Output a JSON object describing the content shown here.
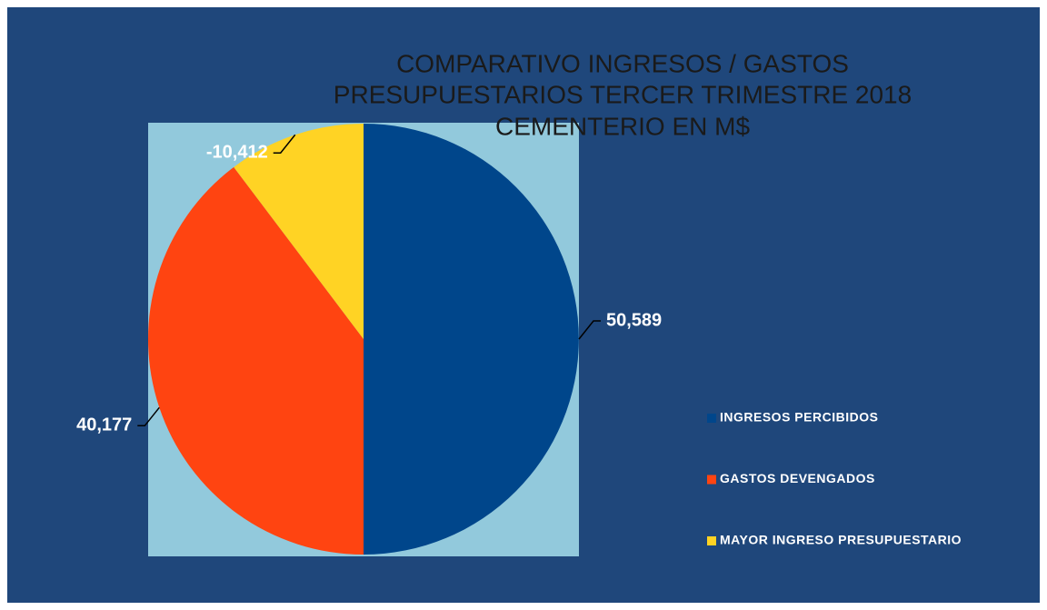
{
  "chart_data": {
    "type": "pie",
    "title": [
      "COMPARATIVO INGRESOS / GASTOS",
      "PRESUPUESTARIOS TERCER TRIMESTRE 2018",
      "CEMENTERIO EN M$"
    ],
    "categories": [
      "INGRESOS PERCIBIDOS",
      "GASTOS DEVENGADOS",
      "MAYOR INGRESO PRESUPUESTARIO"
    ],
    "values": [
      50589,
      40177,
      -10412
    ],
    "value_labels": [
      "50,589",
      "40,177",
      "-10,412"
    ],
    "colors": [
      "#00468b",
      "#ff4411",
      "#ffd324"
    ],
    "legend": "right"
  }
}
